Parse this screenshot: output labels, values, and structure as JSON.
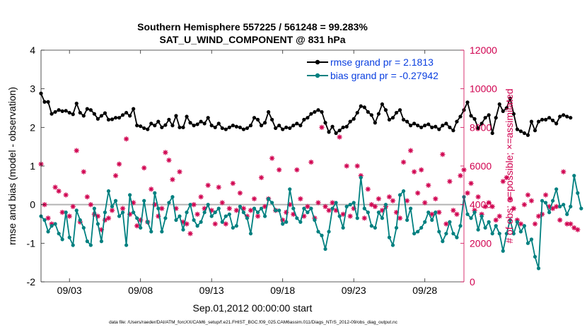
{
  "chart_data": {
    "type": "line",
    "title": "Southern Hemisphere 557225 / 561248 = 99.283%",
    "subtitle": "SAT_U_WIND_COMPONENT @ 831 hPa",
    "xlabel": "Sep.01,2012 00:00:00 start",
    "ylabel": "rmse and bias (model - observation)",
    "y2label": "# of obs: o=possible; ×=assimilated",
    "footnote": "data file: /Users/raeder/DAI/ATM_forcXX/CAM6_setup/f.e21.FHIST_BGC.f09_025.CAM6assim.011/Diags_NTrS_2012-09/obs_diag_output.nc",
    "x_tick_labels": [
      "09/03",
      "09/08",
      "09/13",
      "09/18",
      "09/23",
      "09/28"
    ],
    "x_tick_days": [
      3,
      8,
      13,
      18,
      23,
      28
    ],
    "xlim_days": [
      1.0,
      30.75
    ],
    "ylim": [
      -2,
      4
    ],
    "y_ticks": [
      -2,
      -1,
      0,
      1,
      2,
      3,
      4
    ],
    "y2lim": [
      0,
      12000
    ],
    "y2_ticks": [
      0,
      2000,
      4000,
      6000,
      8000,
      10000,
      12000
    ],
    "legend_position": "top-right",
    "step_days": 0.25,
    "series": [
      {
        "name": "rmse grand pr = 2.1813",
        "color": "#000000",
        "values": [
          2.88,
          2.66,
          2.66,
          2.35,
          2.4,
          2.45,
          2.42,
          2.43,
          2.38,
          2.34,
          2.62,
          2.38,
          2.3,
          2.48,
          2.45,
          2.35,
          2.22,
          2.3,
          2.37,
          2.2,
          2.21,
          2.25,
          2.25,
          2.32,
          2.38,
          2.3,
          2.48,
          2.05,
          2.03,
          1.98,
          1.95,
          2.1,
          2.05,
          2.15,
          2.0,
          2.06,
          2.2,
          2.05,
          2.3,
          2.0,
          2.0,
          2.28,
          2.12,
          2.05,
          2.08,
          2.15,
          2.1,
          2.25,
          2.05,
          2.0,
          2.1,
          1.98,
          1.95,
          2.0,
          2.05,
          2.02,
          2.0,
          1.95,
          1.98,
          2.05,
          2.25,
          2.2,
          2.05,
          2.12,
          2.4,
          2.2,
          1.98,
          2.05,
          1.95,
          2.0,
          1.98,
          2.05,
          2.1,
          2.05,
          2.2,
          2.25,
          2.35,
          2.4,
          2.45,
          2.4,
          2.12,
          1.88,
          2.02,
          1.85,
          1.92,
          2.0,
          2.02,
          2.15,
          2.22,
          2.38,
          2.55,
          2.52,
          2.4,
          2.32,
          2.12,
          2.35,
          2.6,
          2.45,
          2.2,
          2.25,
          2.38,
          2.45,
          2.2,
          2.15,
          2.05,
          2.1,
          2.05,
          2.0,
          2.05,
          2.08,
          2.0,
          2.02,
          1.95,
          2.05,
          2.1,
          2.0,
          1.92,
          2.15,
          2.28,
          2.45,
          2.65,
          2.3,
          2.22,
          1.98,
          2.1,
          2.25,
          2.32,
          1.85,
          2.25,
          2.6,
          2.42,
          2.5,
          2.75,
          2.35,
          1.95,
          1.9,
          1.85,
          1.8,
          2.15,
          1.92,
          2.15,
          2.2,
          2.2,
          2.25,
          2.18,
          2.1,
          2.28,
          2.32,
          2.28,
          2.25
        ]
      },
      {
        "name": "bias grand pr = -0.27942",
        "color": "#008080",
        "values": [
          -0.3,
          -0.4,
          -0.7,
          -0.55,
          -0.5,
          -0.75,
          -0.9,
          -0.2,
          -0.85,
          -1.05,
          -0.15,
          -0.4,
          -0.6,
          -0.95,
          -1.05,
          -0.1,
          -0.5,
          -0.95,
          -0.2,
          0.35,
          -0.05,
          0.1,
          -0.3,
          -0.2,
          -1.05,
          0.25,
          -0.2,
          -0.35,
          -0.6,
          0.1,
          -0.45,
          -0.7,
          0.3,
          -0.1,
          -0.7,
          -0.35,
          0.05,
          0.2,
          -0.4,
          -0.3,
          -0.65,
          -0.2,
          0.0,
          -0.4,
          -0.55,
          -0.45,
          -0.2,
          0.0,
          -0.3,
          -0.2,
          -0.1,
          -0.45,
          -0.3,
          -0.25,
          -0.6,
          -0.55,
          -0.05,
          -0.2,
          -0.35,
          -0.75,
          -0.1,
          -0.2,
          -0.1,
          -0.3,
          0.15,
          0.05,
          -0.15,
          -0.15,
          -0.5,
          -0.45,
          0.4,
          -0.1,
          -0.35,
          -0.45,
          -0.1,
          -0.2,
          -0.1,
          -0.4,
          -0.7,
          -0.8,
          -1.15,
          -0.7,
          -0.1,
          0.05,
          -0.3,
          -0.6,
          -0.05,
          0.0,
          0.05,
          -0.35,
          0.7,
          -0.1,
          -0.2,
          -0.55,
          -0.6,
          -0.2,
          -0.35,
          0.0,
          -0.85,
          -1.05,
          -0.6,
          0.25,
          0.35,
          -0.4,
          -0.1,
          -0.75,
          -0.7,
          -0.6,
          -0.45,
          -0.2,
          -0.4,
          -0.2,
          -0.7,
          -0.95,
          -0.75,
          -0.45,
          -0.75,
          -0.85,
          -0.55,
          0.2,
          -0.25,
          -0.35,
          -0.2,
          -0.65,
          -0.3,
          -0.6,
          -0.45,
          -0.75,
          -0.55,
          -0.75,
          -1.2,
          -0.75,
          -0.4,
          -0.75,
          -0.45,
          -0.7,
          -0.55,
          -1.0,
          -0.9,
          -1.35,
          -1.65,
          0.1,
          0.05,
          -0.2,
          0.1,
          0.4,
          -0.05,
          0.0,
          -0.25,
          -0.05,
          0.75,
          0.3,
          -0.1
        ]
      }
    ],
    "obs_counts": {
      "marker": "asterisk",
      "color": "#d0004f",
      "values": [
        6100,
        4000,
        3300,
        3000,
        4900,
        4700,
        3600,
        4500,
        3400,
        3900,
        6800,
        3100,
        5700,
        4400,
        4000,
        3500,
        3400,
        2700,
        3200,
        3300,
        3700,
        5500,
        6100,
        3800,
        7400,
        3500,
        4100,
        2900,
        3200,
        5900,
        3100,
        4800,
        4000,
        3400,
        3800,
        6700,
        6300,
        5300,
        3800,
        5700,
        3100,
        3000,
        2500,
        4000,
        3500,
        4400,
        3800,
        5000,
        3700,
        3000,
        4900,
        4100,
        3000,
        3800,
        5100,
        3700,
        4600,
        3800,
        3400,
        3700,
        4300,
        3400,
        5400,
        3900,
        4300,
        6400,
        3700,
        5800,
        3200,
        3600,
        4000,
        3500,
        5800,
        4300,
        3400,
        3900,
        6200,
        3300,
        4100,
        8000,
        3900,
        3700,
        4100,
        3700,
        7500,
        3500,
        6000,
        3400,
        3800,
        6000,
        5500,
        3300,
        4800,
        4000,
        3900,
        4300,
        3700,
        3900,
        4400,
        4200,
        3600,
        3300,
        6200,
        4200,
        6800,
        5700,
        4600,
        5800,
        4100,
        5000,
        3500,
        4300,
        3600,
        6600,
        3000,
        5200,
        3700,
        3500,
        5500,
        5800,
        4600,
        5100,
        3700,
        4400,
        3500,
        3900,
        4100,
        3900,
        3200,
        3400,
        5200,
        5400,
        4300,
        3800,
        3200,
        3000,
        4000,
        4500,
        4200,
        3000,
        3400,
        3500,
        4500,
        3900,
        3800,
        3900,
        3200,
        5700,
        3000,
        3000,
        2800,
        2700
      ]
    }
  }
}
